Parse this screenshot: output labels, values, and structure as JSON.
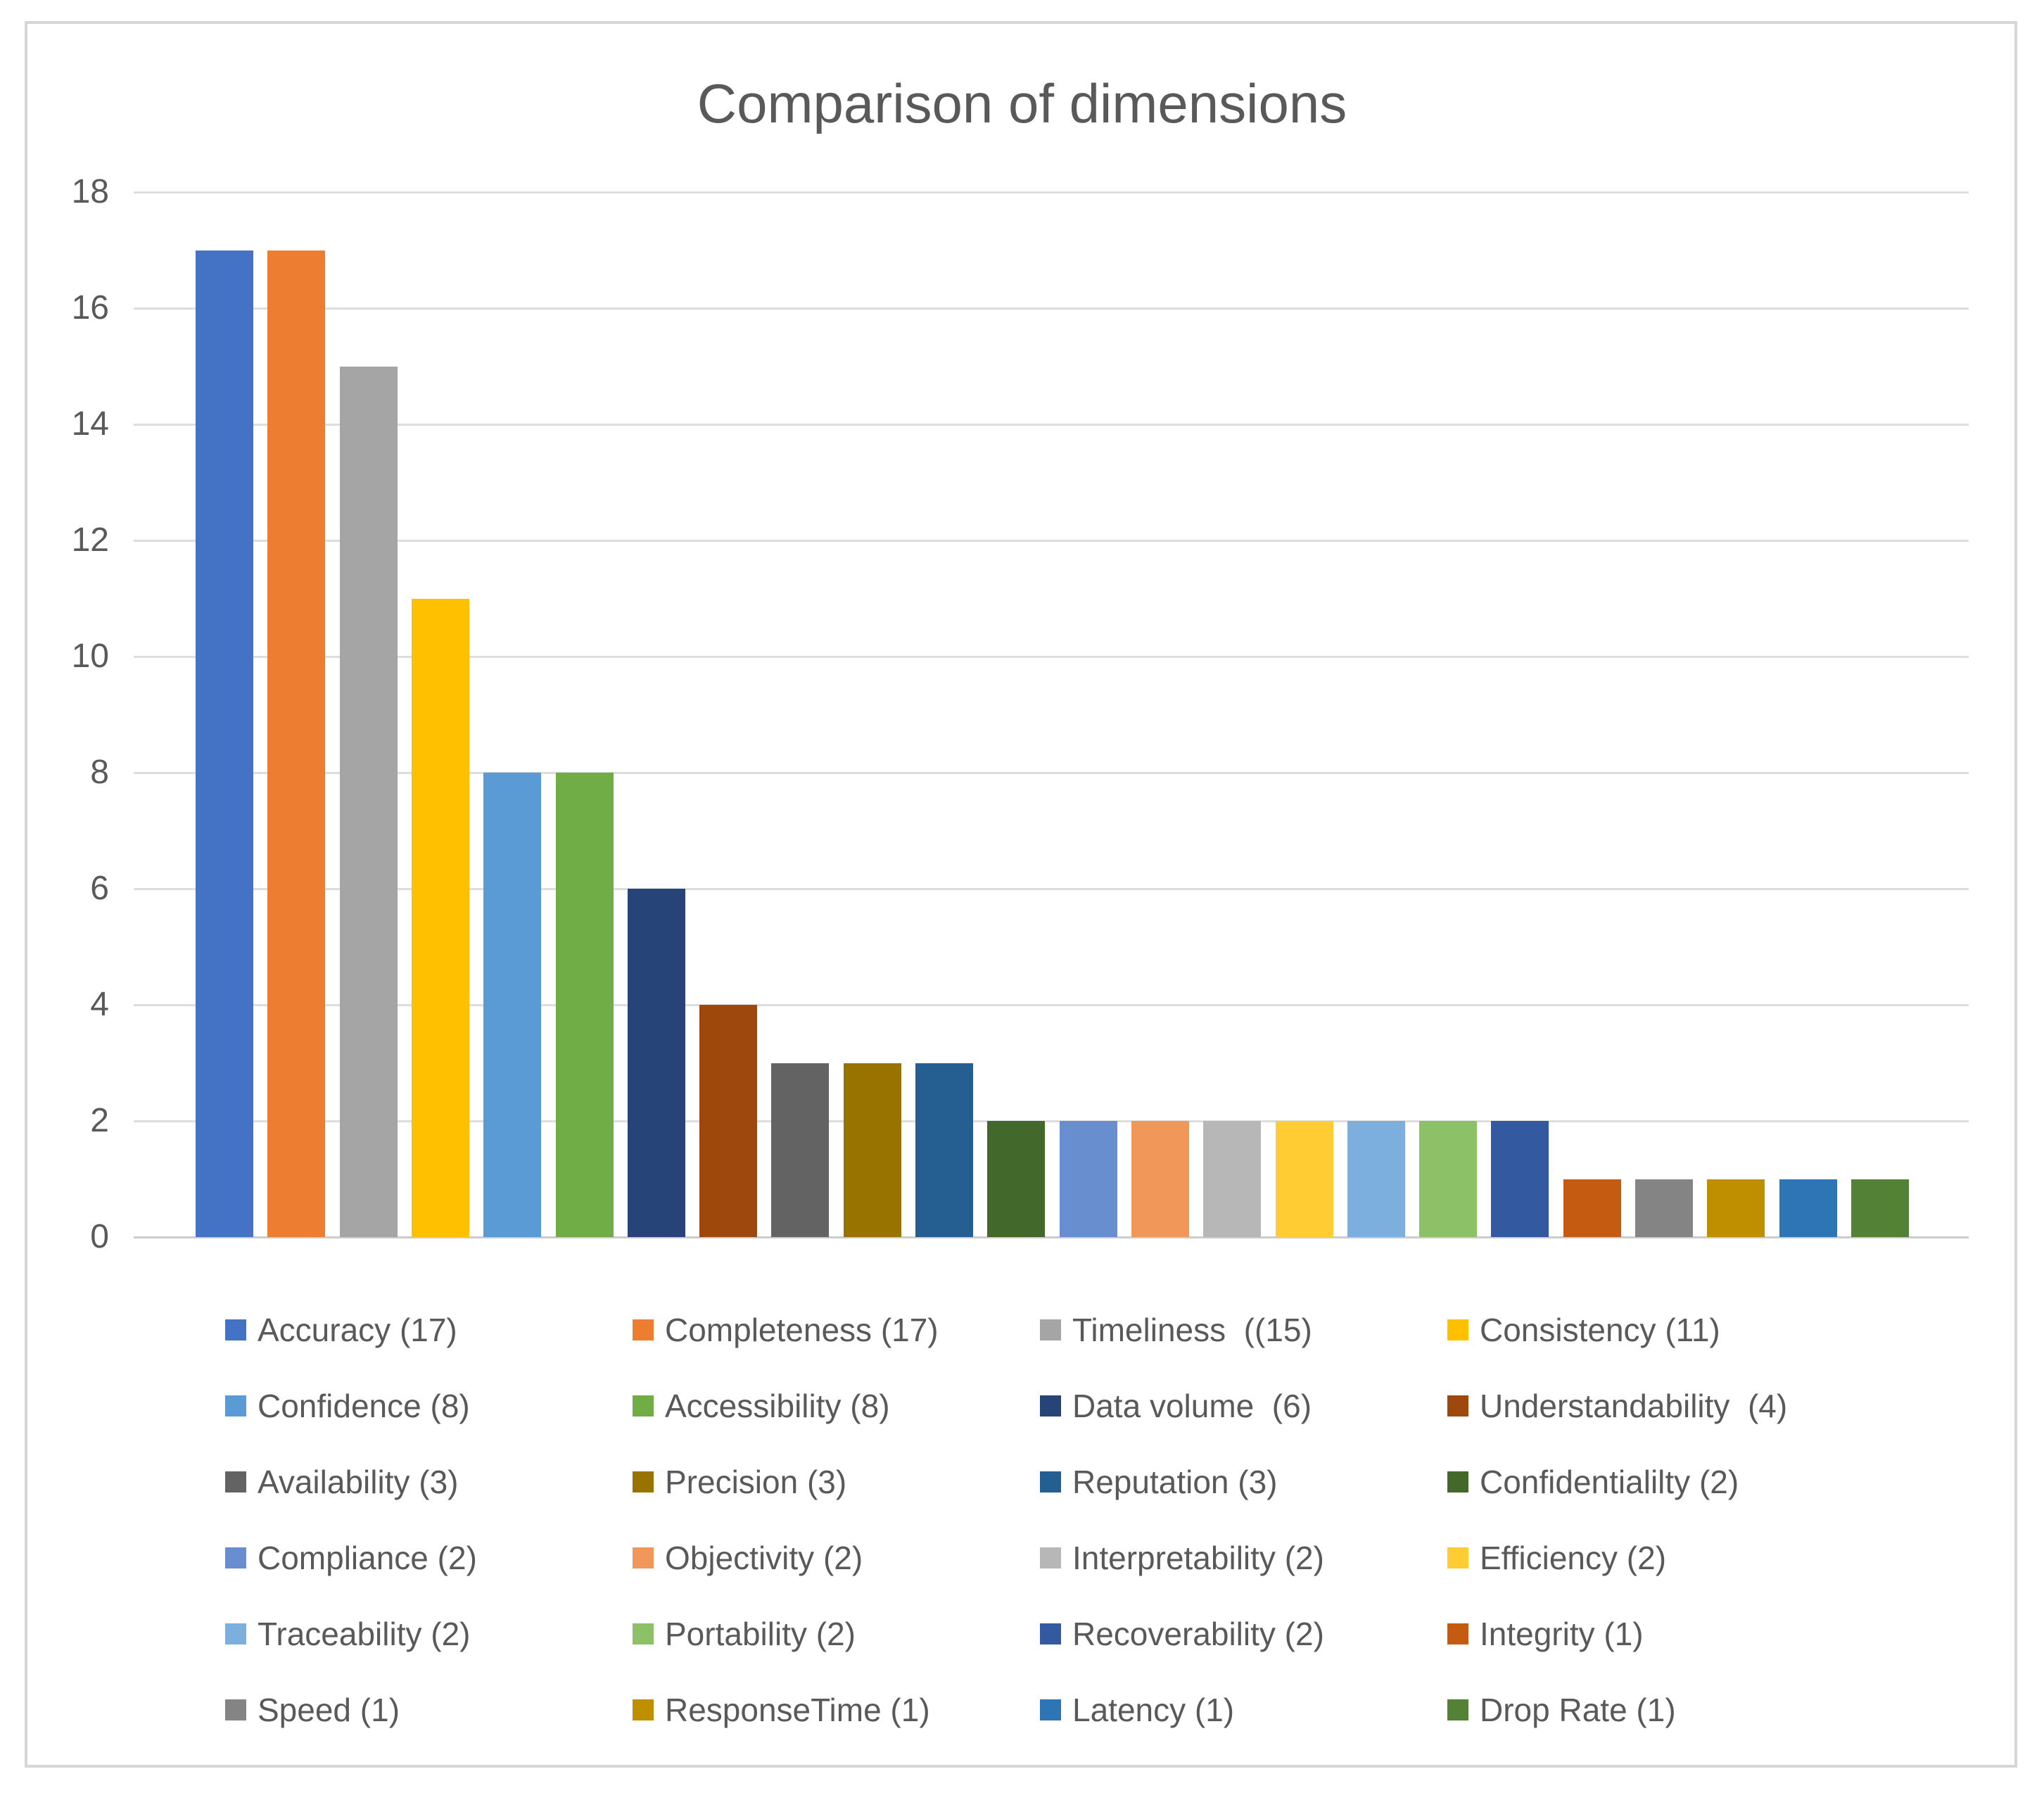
{
  "window": {
    "background": "#ffffff",
    "frame_border_color": "#d6d6d6"
  },
  "colors": {
    "text": "#595959",
    "gridline": "#dddddd",
    "axis_line": "#cccccc"
  },
  "chart_data": {
    "type": "bar",
    "title": "Comparison of dimensions",
    "xlabel": "",
    "ylabel": "",
    "ylim": [
      0,
      18
    ],
    "yticks": [
      0,
      2,
      4,
      6,
      8,
      10,
      12,
      14,
      16,
      18
    ],
    "grid": true,
    "legend_position": "bottom",
    "legend_columns": 4,
    "categories": [
      "Accuracy",
      "Completeness",
      "Timeliness",
      "Consistency",
      "Confidence",
      "Accessibility",
      "Data volume",
      "Understandability",
      "Availability",
      "Precision",
      "Reputation",
      "Confidentialilty",
      "Compliance",
      "Objectivity",
      "Interpretability",
      "Efficiency",
      "Traceability",
      "Portability",
      "Recoverability",
      "Integrity",
      "Speed",
      "ResponseTime",
      "Latency",
      "Drop Rate"
    ],
    "series": [
      {
        "name": "Accuracy",
        "value": 17,
        "color": "#4472C4",
        "legend_label": "Accuracy (17)"
      },
      {
        "name": "Completeness",
        "value": 17,
        "color": "#ED7D31",
        "legend_label": "Completeness (17)"
      },
      {
        "name": "Timeliness",
        "value": 15,
        "color": "#A5A5A5",
        "legend_label": "Timeliness  ((15)"
      },
      {
        "name": "Consistency",
        "value": 11,
        "color": "#FFC000",
        "legend_label": "Consistency (11)"
      },
      {
        "name": "Confidence",
        "value": 8,
        "color": "#5B9BD5",
        "legend_label": "Confidence (8)"
      },
      {
        "name": "Accessibility",
        "value": 8,
        "color": "#70AD47",
        "legend_label": "Accessibility (8)"
      },
      {
        "name": "Data volume",
        "value": 6,
        "color": "#264478",
        "legend_label": "Data volume  (6)"
      },
      {
        "name": "Understandability",
        "value": 4,
        "color": "#9E480E",
        "legend_label": "Understandability  (4)"
      },
      {
        "name": "Availability",
        "value": 3,
        "color": "#636363",
        "legend_label": "Availability (3)"
      },
      {
        "name": "Precision",
        "value": 3,
        "color": "#997300",
        "legend_label": "Precision (3)"
      },
      {
        "name": "Reputation",
        "value": 3,
        "color": "#255E91",
        "legend_label": "Reputation (3)"
      },
      {
        "name": "Confidentialilty",
        "value": 2,
        "color": "#43682B",
        "legend_label": "Confidentialilty (2)"
      },
      {
        "name": "Compliance",
        "value": 2,
        "color": "#698ED0",
        "legend_label": "Compliance (2)"
      },
      {
        "name": "Objectivity",
        "value": 2,
        "color": "#F1975A",
        "legend_label": "Objectivity (2)"
      },
      {
        "name": "Interpretability",
        "value": 2,
        "color": "#B7B7B7",
        "legend_label": "Interpretability (2)"
      },
      {
        "name": "Efficiency",
        "value": 2,
        "color": "#FFCD33",
        "legend_label": "Efficiency (2)"
      },
      {
        "name": "Traceability",
        "value": 2,
        "color": "#7CAFDD",
        "legend_label": "Traceability (2)"
      },
      {
        "name": "Portability",
        "value": 2,
        "color": "#8CC168",
        "legend_label": "Portability (2)"
      },
      {
        "name": "Recoverability",
        "value": 2,
        "color": "#335AA1",
        "legend_label": "Recoverability (2)"
      },
      {
        "name": "Integrity",
        "value": 1,
        "color": "#C55A11",
        "legend_label": "Integrity (1)"
      },
      {
        "name": "Speed",
        "value": 1,
        "color": "#848484",
        "legend_label": "Speed (1)"
      },
      {
        "name": "ResponseTime",
        "value": 1,
        "color": "#BF8F00",
        "legend_label": "ResponseTime (1)"
      },
      {
        "name": "Latency",
        "value": 1,
        "color": "#2E75B6",
        "legend_label": "Latency (1)"
      },
      {
        "name": "Drop Rate",
        "value": 1,
        "color": "#538135",
        "legend_label": "Drop Rate (1)"
      }
    ]
  }
}
